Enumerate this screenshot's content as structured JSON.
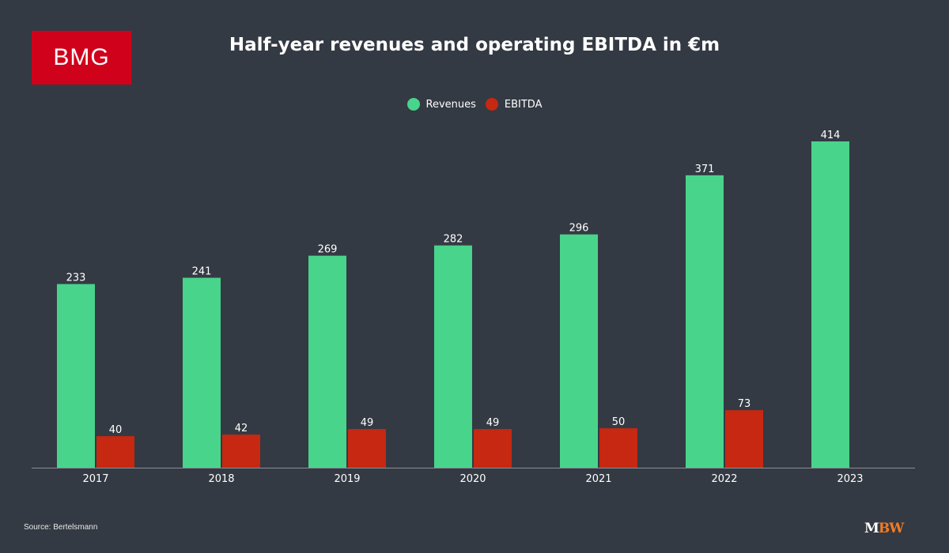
{
  "logo": {
    "text": "BMG",
    "color": "#d0021b"
  },
  "footer": {
    "source": "Source: Bertelsmann",
    "brand_part1": "M",
    "brand_part2": "BW",
    "brand_color1": "#ffffff",
    "brand_color2": "#f47b20"
  },
  "chart_data": {
    "type": "bar",
    "title": "Half-year revenues and operating EBITDA in €m",
    "xlabel": "",
    "ylabel": "",
    "categories": [
      "2017",
      "2018",
      "2019",
      "2020",
      "2021",
      "2022",
      "2023"
    ],
    "series": [
      {
        "name": "Revenues",
        "color": "#48d48b",
        "values": [
          233,
          241,
          269,
          282,
          296,
          371,
          414
        ]
      },
      {
        "name": "EBITDA",
        "color": "#c62811",
        "values": [
          40,
          42,
          49,
          49,
          50,
          73,
          null
        ]
      }
    ],
    "ylim": [
      0,
      414
    ],
    "grid": false,
    "legend_position": "top-center",
    "data_labels": true
  }
}
